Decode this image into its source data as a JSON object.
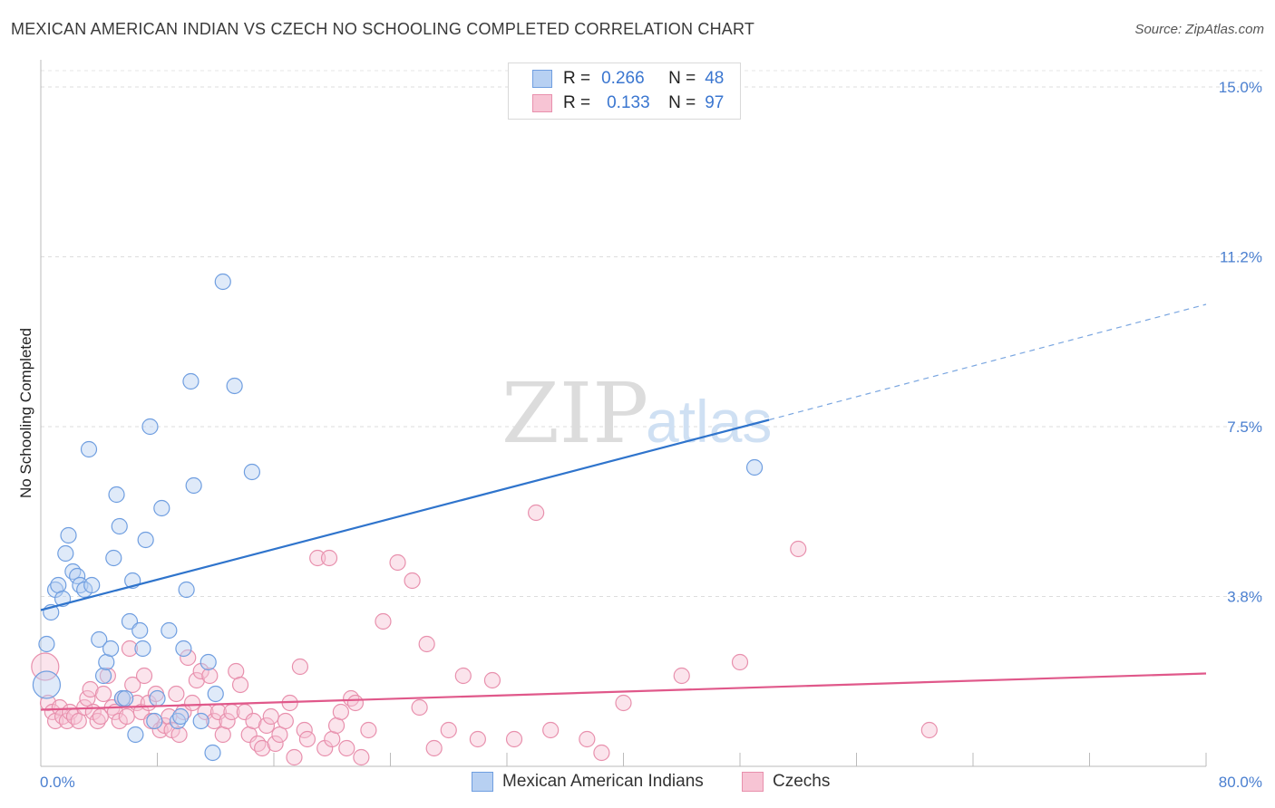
{
  "title": "MEXICAN AMERICAN INDIAN VS CZECH NO SCHOOLING COMPLETED CORRELATION CHART",
  "source": "Source: ZipAtlas.com",
  "watermark": {
    "zip": "ZIP",
    "atlas": "atlas"
  },
  "legend": {
    "r_label": "R =",
    "n_label": "N =",
    "rows": [
      {
        "r": "0.266",
        "n": "48"
      },
      {
        "r": "0.133",
        "n": "97"
      }
    ]
  },
  "chart_data": {
    "type": "scatter",
    "title": "MEXICAN AMERICAN INDIAN VS CZECH NO SCHOOLING COMPLETED CORRELATION CHART",
    "xlabel": "",
    "ylabel": "No Schooling Completed",
    "xlim": [
      0,
      80
    ],
    "ylim": [
      0,
      15
    ],
    "x_tick_labels": [
      "0.0%",
      "80.0%"
    ],
    "y_ticks": [
      3.75,
      7.5,
      11.25,
      15.0
    ],
    "y_tick_labels": [
      "3.8%",
      "7.5%",
      "11.2%",
      "15.0%"
    ],
    "grid": true,
    "series": [
      {
        "name": "Mexican American Indians",
        "color": "#6f9ee0",
        "fill": "#b7d0f2",
        "r": "0.266",
        "n": "48",
        "trend": {
          "x0": 0,
          "y0": 3.45,
          "x1": 50,
          "y1": 7.65,
          "extend_to": 80,
          "extend_y": 10.2
        },
        "points": [
          [
            0.4,
            2.7
          ],
          [
            0.4,
            1.8
          ],
          [
            0.7,
            3.4
          ],
          [
            1.0,
            3.9
          ],
          [
            1.2,
            4.0
          ],
          [
            1.5,
            3.7
          ],
          [
            1.7,
            4.7
          ],
          [
            1.9,
            5.1
          ],
          [
            2.2,
            4.3
          ],
          [
            2.5,
            4.2
          ],
          [
            2.7,
            4.0
          ],
          [
            3.0,
            3.9
          ],
          [
            3.5,
            4.0
          ],
          [
            3.3,
            7.0
          ],
          [
            4.0,
            2.8
          ],
          [
            4.3,
            2.0
          ],
          [
            4.5,
            2.3
          ],
          [
            4.8,
            2.6
          ],
          [
            5.0,
            4.6
          ],
          [
            5.2,
            6.0
          ],
          [
            5.4,
            5.3
          ],
          [
            5.6,
            1.5
          ],
          [
            5.8,
            1.5
          ],
          [
            6.1,
            3.2
          ],
          [
            6.3,
            4.1
          ],
          [
            6.5,
            0.7
          ],
          [
            6.8,
            3.0
          ],
          [
            7.0,
            2.6
          ],
          [
            7.2,
            5.0
          ],
          [
            7.5,
            7.5
          ],
          [
            7.8,
            1.0
          ],
          [
            8.0,
            1.5
          ],
          [
            8.3,
            5.7
          ],
          [
            8.8,
            3.0
          ],
          [
            9.4,
            1.0
          ],
          [
            9.6,
            1.1
          ],
          [
            9.8,
            2.6
          ],
          [
            10.0,
            3.9
          ],
          [
            10.3,
            8.5
          ],
          [
            10.5,
            6.2
          ],
          [
            11.0,
            1.0
          ],
          [
            11.5,
            2.3
          ],
          [
            11.8,
            0.3
          ],
          [
            12.0,
            1.6
          ],
          [
            12.5,
            10.7
          ],
          [
            13.3,
            8.4
          ],
          [
            14.5,
            6.5
          ],
          [
            49.0,
            6.6
          ]
        ]
      },
      {
        "name": "Czechs",
        "color": "#e890ad",
        "fill": "#f7c4d4",
        "r": "0.133",
        "n": "97",
        "trend": {
          "x0": 0,
          "y0": 1.25,
          "x1": 80,
          "y1": 2.05
        },
        "points": [
          [
            0.3,
            2.2
          ],
          [
            0.5,
            1.4
          ],
          [
            0.8,
            1.2
          ],
          [
            1.0,
            1.0
          ],
          [
            1.3,
            1.3
          ],
          [
            1.5,
            1.1
          ],
          [
            1.8,
            1.0
          ],
          [
            2.0,
            1.2
          ],
          [
            2.3,
            1.1
          ],
          [
            2.6,
            1.0
          ],
          [
            3.0,
            1.3
          ],
          [
            3.2,
            1.5
          ],
          [
            3.4,
            1.7
          ],
          [
            3.6,
            1.2
          ],
          [
            3.9,
            1.0
          ],
          [
            4.1,
            1.1
          ],
          [
            4.3,
            1.6
          ],
          [
            4.6,
            2.0
          ],
          [
            4.9,
            1.3
          ],
          [
            5.1,
            1.2
          ],
          [
            5.4,
            1.0
          ],
          [
            5.6,
            1.5
          ],
          [
            5.9,
            1.1
          ],
          [
            6.1,
            2.6
          ],
          [
            6.3,
            1.8
          ],
          [
            6.6,
            1.4
          ],
          [
            6.9,
            1.2
          ],
          [
            7.1,
            2.0
          ],
          [
            7.4,
            1.4
          ],
          [
            7.6,
            1.0
          ],
          [
            7.9,
            1.6
          ],
          [
            8.2,
            0.8
          ],
          [
            8.5,
            0.9
          ],
          [
            8.8,
            1.1
          ],
          [
            9.0,
            0.8
          ],
          [
            9.3,
            1.6
          ],
          [
            9.5,
            0.7
          ],
          [
            9.8,
            1.2
          ],
          [
            10.1,
            2.4
          ],
          [
            10.4,
            1.4
          ],
          [
            10.7,
            1.9
          ],
          [
            11.0,
            2.1
          ],
          [
            11.3,
            1.2
          ],
          [
            11.6,
            2.0
          ],
          [
            11.9,
            1.0
          ],
          [
            12.2,
            1.2
          ],
          [
            12.5,
            0.7
          ],
          [
            12.8,
            1.0
          ],
          [
            13.1,
            1.2
          ],
          [
            13.4,
            2.1
          ],
          [
            13.7,
            1.8
          ],
          [
            14.0,
            1.2
          ],
          [
            14.3,
            0.7
          ],
          [
            14.6,
            1.0
          ],
          [
            14.9,
            0.5
          ],
          [
            15.2,
            0.4
          ],
          [
            15.5,
            0.9
          ],
          [
            15.8,
            1.1
          ],
          [
            16.1,
            0.5
          ],
          [
            16.4,
            0.7
          ],
          [
            16.8,
            1.0
          ],
          [
            17.1,
            1.4
          ],
          [
            17.4,
            0.2
          ],
          [
            17.8,
            2.2
          ],
          [
            18.1,
            0.8
          ],
          [
            18.3,
            0.6
          ],
          [
            19.0,
            4.6
          ],
          [
            19.5,
            0.4
          ],
          [
            19.8,
            4.6
          ],
          [
            20.0,
            0.6
          ],
          [
            20.3,
            0.9
          ],
          [
            20.6,
            1.2
          ],
          [
            21.0,
            0.4
          ],
          [
            21.3,
            1.5
          ],
          [
            21.6,
            1.4
          ],
          [
            22.0,
            0.2
          ],
          [
            22.5,
            0.8
          ],
          [
            23.5,
            3.2
          ],
          [
            24.5,
            4.5
          ],
          [
            25.5,
            4.1
          ],
          [
            26.0,
            1.3
          ],
          [
            26.5,
            2.7
          ],
          [
            27.0,
            0.4
          ],
          [
            28.0,
            0.8
          ],
          [
            29.0,
            2.0
          ],
          [
            30.0,
            0.6
          ],
          [
            31.0,
            1.9
          ],
          [
            32.5,
            0.6
          ],
          [
            34.0,
            5.6
          ],
          [
            35.0,
            0.8
          ],
          [
            37.5,
            0.6
          ],
          [
            38.5,
            0.3
          ],
          [
            40.0,
            1.4
          ],
          [
            44.0,
            2.0
          ],
          [
            48.0,
            2.3
          ],
          [
            52.0,
            4.8
          ],
          [
            61.0,
            0.8
          ]
        ]
      }
    ]
  }
}
